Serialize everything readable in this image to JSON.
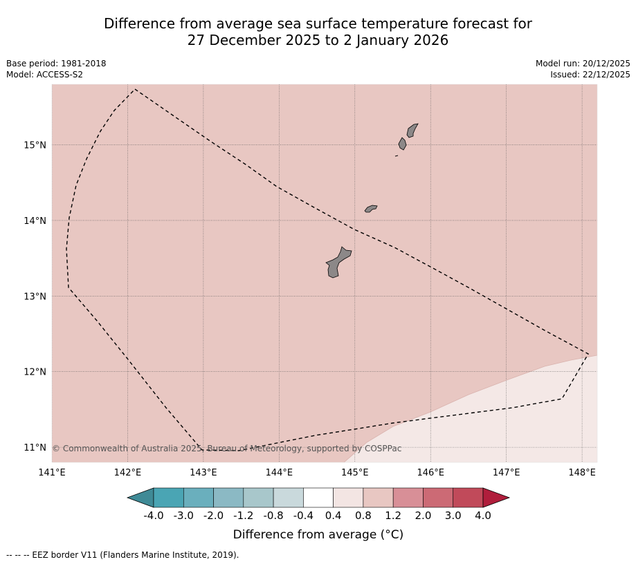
{
  "title": {
    "line1": "Difference from average sea surface temperature forecast for",
    "line2": "27 December 2025 to 2 January 2026"
  },
  "meta": {
    "base_period": "Base period: 1981-2018",
    "model": "Model: ACCESS-S2",
    "model_run": "Model run: 20/12/2025",
    "issued": "Issued: 22/12/2025"
  },
  "map": {
    "lon_range": [
      141.0,
      148.2
    ],
    "lat_range": [
      10.8,
      15.8
    ],
    "lon_ticks": [
      {
        "value": 141,
        "label": "141°E"
      },
      {
        "value": 142,
        "label": "142°E"
      },
      {
        "value": 143,
        "label": "143°E"
      },
      {
        "value": 144,
        "label": "144°E"
      },
      {
        "value": 145,
        "label": "145°E"
      },
      {
        "value": 146,
        "label": "146°E"
      },
      {
        "value": 147,
        "label": "147°E"
      },
      {
        "value": 148,
        "label": "148°E"
      }
    ],
    "lat_ticks": [
      {
        "value": 11,
        "label": "11°N"
      },
      {
        "value": 12,
        "label": "12°N"
      },
      {
        "value": 13,
        "label": "13°N"
      },
      {
        "value": 14,
        "label": "14°N"
      },
      {
        "value": 15,
        "label": "15°N"
      }
    ],
    "background_category": "0.8 to 1.2",
    "lower_category": "0.4 to 0.8",
    "copyright": "© Commonwealth of Australia 2025, Bureau of Meteorology, supported by COSPPac"
  },
  "colorbar": {
    "labels": [
      "-4.0",
      "-3.0",
      "-2.0",
      "-1.2",
      "-0.8",
      "-0.4",
      "0.4",
      "0.8",
      "1.2",
      "2.0",
      "3.0",
      "4.0"
    ],
    "colors": [
      "#4aa5b4",
      "#6aafbd",
      "#8bb9c4",
      "#a8c7cb",
      "#c9d9dc",
      "#ffffff",
      "#f3e5e3",
      "#e8c7c2",
      "#d88f97",
      "#cc6a75",
      "#c14a5a"
    ],
    "under_color": "#3f8a96",
    "over_color": "#b01e3c",
    "title": "Difference from average (°C)"
  },
  "colors": {
    "sea_warm": "#e8c7c2",
    "sea_mild": "#f4e8e6",
    "land": "#8c8888",
    "grid": "#555555"
  },
  "footnote": "--  --  -- EEZ border V11 (Flanders Marine Institute, 2019)."
}
